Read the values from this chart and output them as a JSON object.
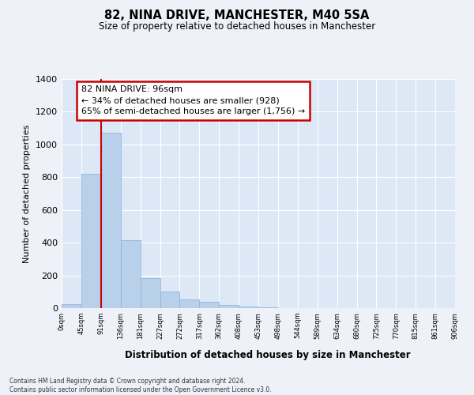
{
  "title": "82, NINA DRIVE, MANCHESTER, M40 5SA",
  "subtitle": "Size of property relative to detached houses in Manchester",
  "xlabel": "Distribution of detached houses by size in Manchester",
  "ylabel": "Number of detached properties",
  "bar_color": "#b8d0ea",
  "bar_edge_color": "#8ab0d8",
  "background_color": "#dce8f5",
  "fig_background_color": "#eef2f8",
  "grid_color": "#ffffff",
  "tick_labels": [
    "0sqm",
    "45sqm",
    "91sqm",
    "136sqm",
    "181sqm",
    "227sqm",
    "272sqm",
    "317sqm",
    "362sqm",
    "408sqm",
    "453sqm",
    "498sqm",
    "544sqm",
    "589sqm",
    "634sqm",
    "680sqm",
    "725sqm",
    "770sqm",
    "815sqm",
    "861sqm",
    "906sqm"
  ],
  "bar_values": [
    25,
    820,
    1070,
    415,
    185,
    100,
    55,
    38,
    20,
    8,
    3,
    0,
    0,
    0,
    0,
    0,
    0,
    0,
    0,
    0
  ],
  "ylim": [
    0,
    1400
  ],
  "yticks": [
    0,
    200,
    400,
    600,
    800,
    1000,
    1200,
    1400
  ],
  "annotation_title": "82 NINA DRIVE: 96sqm",
  "annotation_line1": "← 34% of detached houses are smaller (928)",
  "annotation_line2": "65% of semi-detached houses are larger (1,756) →",
  "annotation_box_color": "#ffffff",
  "annotation_border_color": "#cc0000",
  "red_line_color": "#cc0000",
  "footer_line1": "Contains HM Land Registry data © Crown copyright and database right 2024.",
  "footer_line2": "Contains public sector information licensed under the Open Government Licence v3.0."
}
